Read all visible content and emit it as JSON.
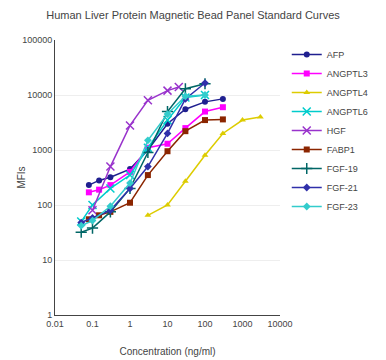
{
  "chart_data": {
    "type": "line",
    "title": "Human Liver Protein Magnetic Bead Panel Standard Curves",
    "xlabel": "Concentration (ng/ml)",
    "ylabel": "MFIs",
    "log": true,
    "grid": "y",
    "legend": "right",
    "xlim": [
      0.01,
      10000
    ],
    "ylim": [
      1,
      100000
    ],
    "xticks": [
      0.01,
      0.1,
      1,
      10,
      100,
      1000,
      10000
    ],
    "yticks": [
      1,
      10,
      100,
      1000,
      10000,
      100000
    ],
    "series": [
      {
        "name": "AFP",
        "color": "#1f1f8f",
        "marker": "circle",
        "x": [
          0.08,
          0.15,
          0.3,
          1,
          3,
          10,
          30,
          100,
          300
        ],
        "values": [
          230,
          280,
          320,
          450,
          1000,
          3000,
          5500,
          7500,
          8500
        ]
      },
      {
        "name": "ANGPTL3",
        "color": "#ff00ff",
        "marker": "square",
        "x": [
          0.08,
          0.15,
          0.3,
          1,
          3,
          10,
          30,
          100,
          300
        ],
        "values": [
          170,
          190,
          230,
          400,
          1100,
          1300,
          2500,
          5000,
          6000
        ]
      },
      {
        "name": "ANGPTL4",
        "color": "#ddcc00",
        "marker": "triangle",
        "x": [
          3,
          10,
          30,
          100,
          300,
          1000,
          3000
        ],
        "values": [
          65,
          100,
          270,
          800,
          2000,
          3500,
          4000
        ]
      },
      {
        "name": "ANGPTL6",
        "color": "#00cccc",
        "marker": "x",
        "x": [
          0.05,
          0.1,
          0.3,
          1,
          3,
          10,
          30,
          100
        ],
        "values": [
          50,
          100,
          200,
          350,
          1100,
          3500,
          9000,
          10000
        ]
      },
      {
        "name": "HGF",
        "color": "#9933cc",
        "marker": "x",
        "x": [
          0.1,
          0.3,
          1,
          3,
          10,
          20
        ],
        "values": [
          80,
          500,
          2800,
          8000,
          12000,
          14000
        ]
      },
      {
        "name": "FABP1",
        "color": "#8B2500",
        "marker": "square",
        "x": [
          0.08,
          0.15,
          0.3,
          1,
          3,
          10,
          30,
          100,
          300
        ],
        "values": [
          55,
          65,
          75,
          110,
          350,
          950,
          2200,
          3500,
          3600
        ]
      },
      {
        "name": "FGF-19",
        "color": "#006666",
        "marker": "plus",
        "x": [
          0.05,
          0.1,
          0.3,
          1,
          3,
          10,
          30,
          100
        ],
        "values": [
          32,
          38,
          75,
          200,
          900,
          5000,
          13000,
          16000
        ]
      },
      {
        "name": "FGF-21",
        "color": "#3030aa",
        "marker": "diamond",
        "x": [
          0.05,
          0.1,
          0.3,
          1,
          3,
          10,
          30,
          100
        ],
        "values": [
          48,
          58,
          80,
          200,
          500,
          2000,
          8500,
          16500
        ]
      },
      {
        "name": "FGF-23",
        "color": "#33cccc",
        "marker": "diamond",
        "x": [
          0.05,
          0.1,
          0.3,
          1,
          3,
          10,
          30,
          100
        ],
        "values": [
          42,
          52,
          95,
          250,
          1500,
          4500,
          9500,
          10000
        ]
      }
    ]
  }
}
